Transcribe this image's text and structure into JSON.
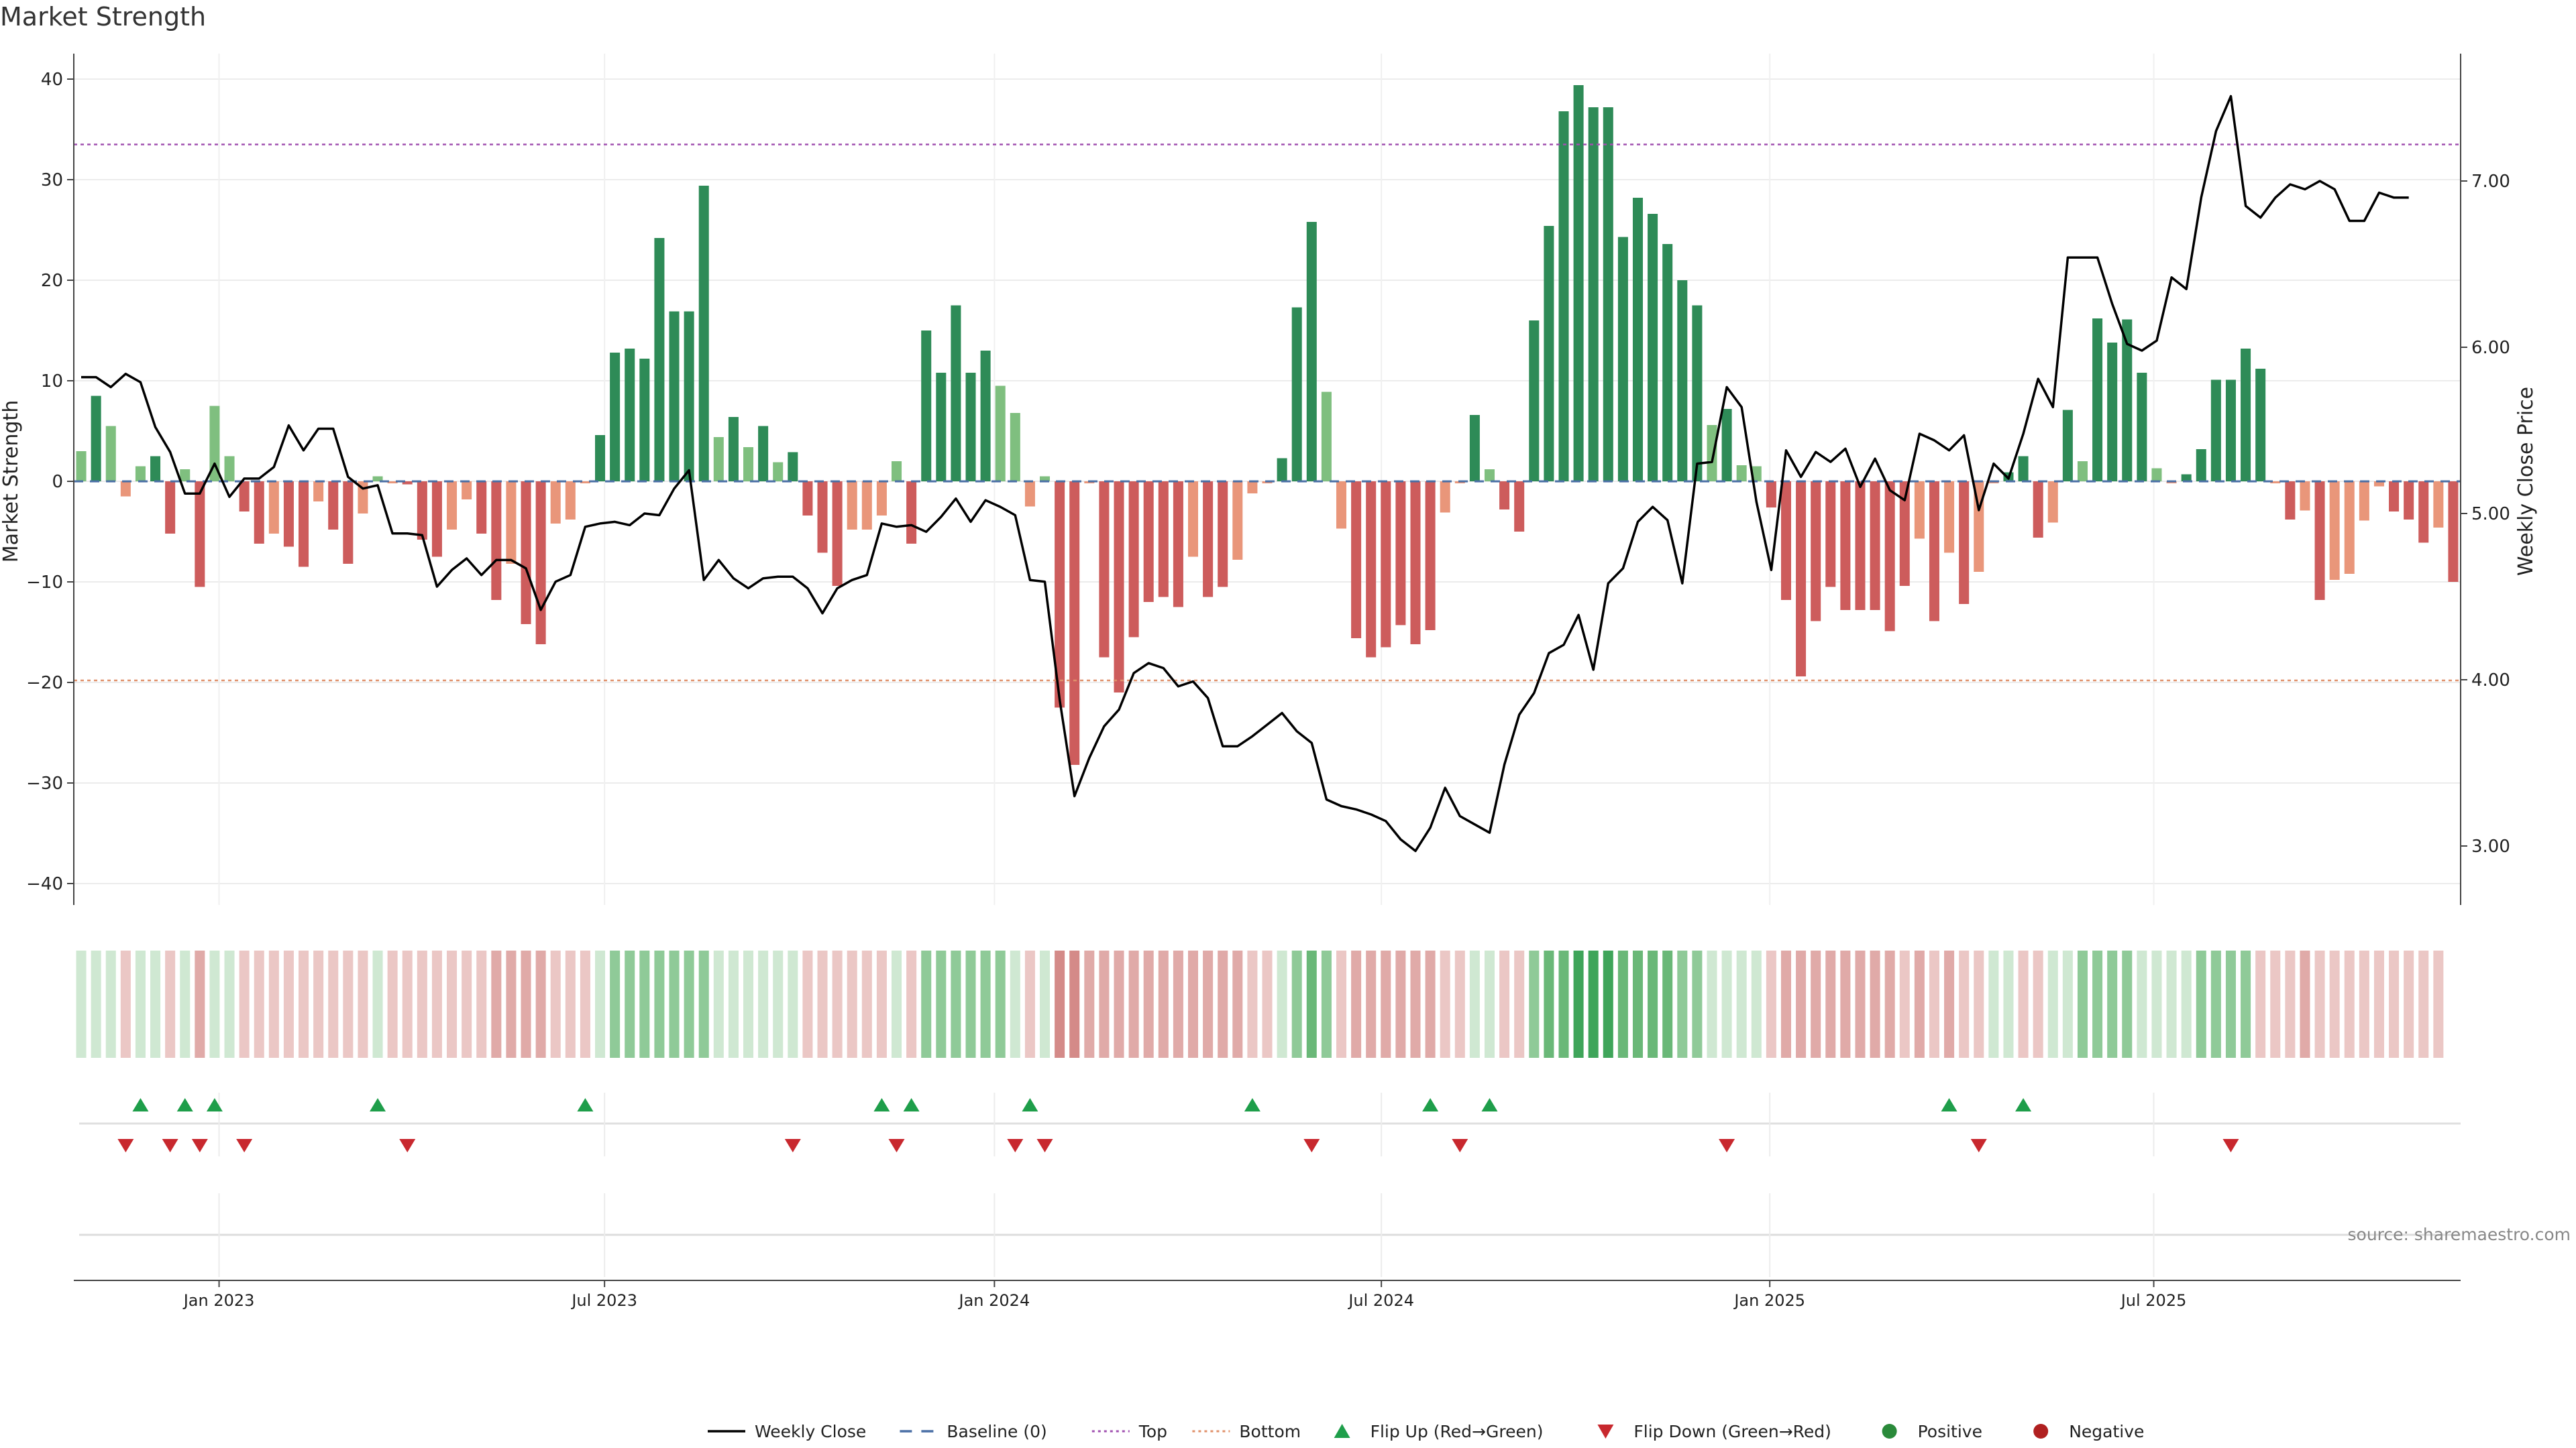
{
  "title": "Market Strength",
  "source": "source: sharemaestro.com",
  "chart_data": {
    "type": "bar",
    "title": "Market Strength",
    "ylabel": "Market Strength",
    "y2label": "Weekly Close Price",
    "ylim": [
      -43,
      42
    ],
    "y2lim": [
      2.58,
      7.78
    ],
    "yticks": [
      40,
      30,
      20,
      10,
      0,
      -10,
      -20,
      -30,
      -40
    ],
    "ytick_labels": [
      "40",
      "30",
      "20",
      "10",
      "0",
      "−10",
      "−20",
      "−30",
      "−40"
    ],
    "y2ticks": [
      7.0,
      6.0,
      5.0,
      4.0,
      3.0
    ],
    "y2tick_labels": [
      "7.00",
      "6.00",
      "5.00",
      "4.00",
      "3.00"
    ],
    "top_threshold": 33.5,
    "bottom_threshold": -19.8,
    "xticks": [
      {
        "label": "Jan 2023",
        "index": 9.3
      },
      {
        "label": "Jul 2023",
        "index": 35.3
      },
      {
        "label": "Jan 2024",
        "index": 61.6
      },
      {
        "label": "Jul 2024",
        "index": 87.7
      },
      {
        "label": "Jan 2025",
        "index": 113.9
      },
      {
        "label": "Jul 2025",
        "index": 139.8
      }
    ],
    "x_start": "2022-10-31",
    "x_interval": "weekly",
    "strength": [
      3,
      8.5,
      5.5,
      -1.5,
      1.5,
      2.5,
      -5.2,
      1.2,
      -10.5,
      7.5,
      2.5,
      -3,
      -6.2,
      -5.2,
      -6.5,
      -8.5,
      -2,
      -4.8,
      -8.2,
      -3.2,
      0.5,
      -0.2,
      -0.3,
      -5.8,
      -7.5,
      -4.8,
      -1.8,
      -5.2,
      -11.8,
      -8.2,
      -14.2,
      -16.2,
      -4.2,
      -3.8,
      -0.2,
      4.6,
      12.8,
      13.2,
      12.2,
      24.2,
      16.9,
      16.9,
      29.4,
      4.4,
      6.4,
      3.4,
      5.5,
      1.9,
      2.9,
      -3.4,
      -7.1,
      -10.4,
      -4.8,
      -4.8,
      -3.4,
      2,
      -6.2,
      15,
      10.8,
      17.5,
      10.8,
      13,
      9.5,
      6.8,
      -2.5,
      0.5,
      -22.5,
      -28.2,
      -0.2,
      -17.5,
      -21,
      -15.5,
      -12,
      -11.5,
      -12.5,
      -7.5,
      -11.5,
      -10.5,
      -7.8,
      -1.2,
      -0.2,
      2.3,
      17.3,
      25.8,
      8.9,
      -4.7,
      -15.6,
      -17.5,
      -16.5,
      -14.3,
      -16.2,
      -14.8,
      -3.1,
      -0.2,
      6.6,
      1.2,
      -2.8,
      -5,
      16,
      25.4,
      36.8,
      39.4,
      37.2,
      37.2,
      24.3,
      28.2,
      26.6,
      23.6,
      20,
      17.5,
      5.6,
      7.2,
      1.6,
      1.5,
      -2.6,
      -11.8,
      -19.4,
      -13.9,
      -10.5,
      -12.8,
      -12.8,
      -12.8,
      -14.9,
      -10.4,
      -5.7,
      -13.9,
      -7.1,
      -12.2,
      -9,
      -0.2,
      0.9,
      2.5,
      -5.6,
      -4.1,
      7.1,
      2,
      16.2,
      13.8,
      16.1,
      10.8,
      1.3,
      -0.2,
      0.7,
      3.2,
      10.1,
      10.1,
      13.2,
      11.2,
      -0.2,
      -3.8,
      -2.9,
      -11.8,
      -9.8,
      -9.2,
      -3.9,
      -0.5,
      -3,
      -3.8,
      -6.1,
      -4.6,
      -10
    ],
    "weekly_close": [
      5.82,
      5.82,
      5.76,
      5.84,
      5.79,
      5.52,
      5.37,
      5.12,
      5.12,
      5.3,
      5.1,
      5.21,
      5.21,
      5.28,
      5.53,
      5.38,
      5.51,
      5.51,
      5.22,
      5.15,
      5.17,
      4.88,
      4.88,
      4.87,
      4.56,
      4.66,
      4.73,
      4.63,
      4.72,
      4.72,
      4.67,
      4.42,
      4.59,
      4.63,
      4.92,
      4.94,
      4.95,
      4.93,
      5.0,
      4.99,
      5.15,
      5.26,
      4.6,
      4.72,
      4.61,
      4.55,
      4.61,
      4.62,
      4.62,
      4.55,
      4.4,
      4.55,
      4.6,
      4.63,
      4.94,
      4.92,
      4.93,
      4.89,
      4.98,
      5.09,
      4.95,
      5.08,
      5.04,
      4.99,
      4.6,
      4.59,
      3.88,
      3.3,
      3.53,
      3.72,
      3.82,
      4.04,
      4.1,
      4.07,
      3.96,
      3.99,
      3.89,
      3.6,
      3.6,
      3.66,
      3.73,
      3.8,
      3.69,
      3.62,
      3.28,
      3.24,
      3.22,
      3.19,
      3.15,
      3.04,
      2.97,
      3.11,
      3.35,
      3.18,
      3.13,
      3.08,
      3.49,
      3.79,
      3.92,
      4.16,
      4.21,
      4.39,
      4.06,
      4.58,
      4.67,
      4.95,
      5.04,
      4.96,
      4.58,
      5.3,
      5.31,
      5.76,
      5.64,
      5.07,
      4.66,
      5.38,
      5.22,
      5.37,
      5.31,
      5.39,
      5.16,
      5.33,
      5.14,
      5.08,
      5.48,
      5.44,
      5.38,
      5.47,
      5.02,
      5.3,
      5.21,
      5.48,
      5.81,
      5.64,
      6.54,
      6.54,
      6.54,
      6.26,
      6.02,
      5.98,
      6.04,
      6.42,
      6.35,
      6.9,
      7.3,
      7.51,
      6.85,
      6.78,
      6.9,
      6.98,
      6.95,
      7.0,
      6.95,
      6.76,
      6.76,
      6.93,
      6.9,
      6.9
    ],
    "heat": [
      1,
      1,
      1,
      -1,
      1,
      1,
      -1,
      1,
      -2,
      1,
      1,
      -1,
      -1,
      -1,
      -1,
      -1,
      -1,
      -1,
      -1,
      -1,
      1,
      -1,
      -1,
      -1,
      -1,
      -1,
      -1,
      -1,
      -2,
      -2,
      -2,
      -2,
      -1,
      -1,
      -1,
      1,
      2,
      2,
      2,
      2,
      2,
      2,
      2,
      1,
      1,
      1,
      1,
      1,
      1,
      -1,
      -1,
      -1,
      -1,
      -1,
      -1,
      1,
      -1,
      2,
      2,
      2,
      2,
      2,
      2,
      1,
      -1,
      1,
      -3,
      -3,
      -2,
      -2,
      -2,
      -2,
      -2,
      -2,
      -2,
      -2,
      -2,
      -2,
      -2,
      -1,
      -1,
      1,
      2,
      3,
      2,
      -1,
      -2,
      -2,
      -2,
      -2,
      -2,
      -2,
      -1,
      -1,
      1,
      1,
      -1,
      -1,
      2,
      3,
      3,
      4,
      4,
      4,
      3,
      3,
      3,
      3,
      2,
      2,
      1,
      1,
      1,
      1,
      -1,
      -2,
      -2,
      -2,
      -2,
      -2,
      -2,
      -2,
      -2,
      -1,
      -2,
      -1,
      -2,
      -1,
      -1,
      1,
      1,
      -1,
      -1,
      1,
      1,
      2,
      2,
      2,
      2,
      1,
      1,
      1,
      1,
      2,
      2,
      2,
      2,
      -1,
      -1,
      -1,
      -2,
      -1,
      -1,
      -1,
      -1,
      -1,
      -1,
      -1,
      -1,
      -1
    ],
    "flip_up": [
      4,
      7,
      9,
      20,
      34,
      54,
      56,
      64,
      79,
      91,
      95,
      126,
      131
    ],
    "flip_down": [
      3,
      6,
      8,
      11,
      22,
      48,
      55,
      63,
      65,
      83,
      93,
      111,
      128,
      145
    ],
    "legend": [
      {
        "label": "Weekly Close",
        "kind": "line",
        "color": "#000000"
      },
      {
        "label": "Baseline (0)",
        "kind": "dash",
        "color": "#4a6fa5"
      },
      {
        "label": "Top",
        "kind": "dot",
        "color": "#a050b0"
      },
      {
        "label": "Bottom",
        "kind": "dot",
        "color": "#e0906a"
      },
      {
        "label": "Flip Up (Red→Green)",
        "kind": "tri-up",
        "color": "#1e9e4a"
      },
      {
        "label": "Flip Down (Green→Red)",
        "kind": "tri-down",
        "color": "#c8282e"
      },
      {
        "label": "Positive",
        "kind": "dot-marker",
        "color": "#2a8a3a"
      },
      {
        "label": "Negative",
        "kind": "dot-marker",
        "color": "#b02020"
      }
    ],
    "legend_position": "bottom-center",
    "colors": {
      "pos_strong": "#2e8b57",
      "pos_weak": "#7fbf7f",
      "neg_strong": "#cd5c5c",
      "neg_weak": "#e9967a",
      "top_line": "#a050b0",
      "bottom_line": "#e0906a",
      "baseline": "#4a6fa5"
    }
  }
}
